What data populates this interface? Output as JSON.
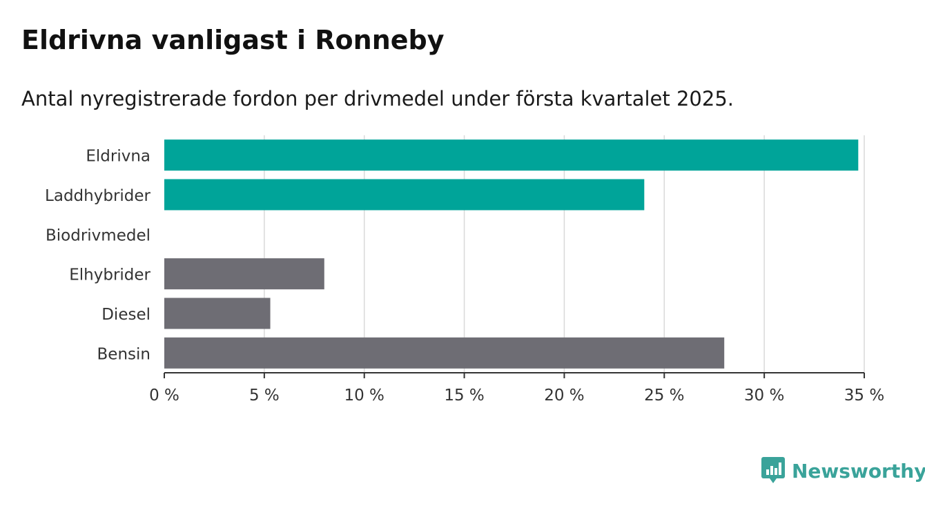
{
  "title": "Eldrivna vanligast i Ronneby",
  "subtitle": "Antal nyregistrerade fordon per drivmedel under första kvartalet 2025.",
  "brand": {
    "name": "Newsworthy",
    "color": "#3aa39a",
    "icon": "chart-bubble-icon"
  },
  "colors": {
    "highlight": "#00a499",
    "neutral": "#6e6d74",
    "grid": "#d9d9d9",
    "axis": "#333333"
  },
  "chart_data": {
    "type": "bar",
    "orientation": "horizontal",
    "categories": [
      "Eldrivna",
      "Laddhybrider",
      "Biodrivmedel",
      "Elhybrider",
      "Diesel",
      "Bensin"
    ],
    "values": [
      34.7,
      24.0,
      0,
      8.0,
      5.3,
      28.0
    ],
    "highlighted": [
      true,
      true,
      true,
      false,
      false,
      false
    ],
    "xlim": [
      0,
      35
    ],
    "xticks": [
      0,
      5,
      10,
      15,
      20,
      25,
      30,
      35
    ],
    "xtick_labels": [
      "0 %",
      "5 %",
      "10 %",
      "15 %",
      "20 %",
      "25 %",
      "30 %",
      "35 %"
    ],
    "grid": true,
    "xlabel": "",
    "ylabel": ""
  }
}
